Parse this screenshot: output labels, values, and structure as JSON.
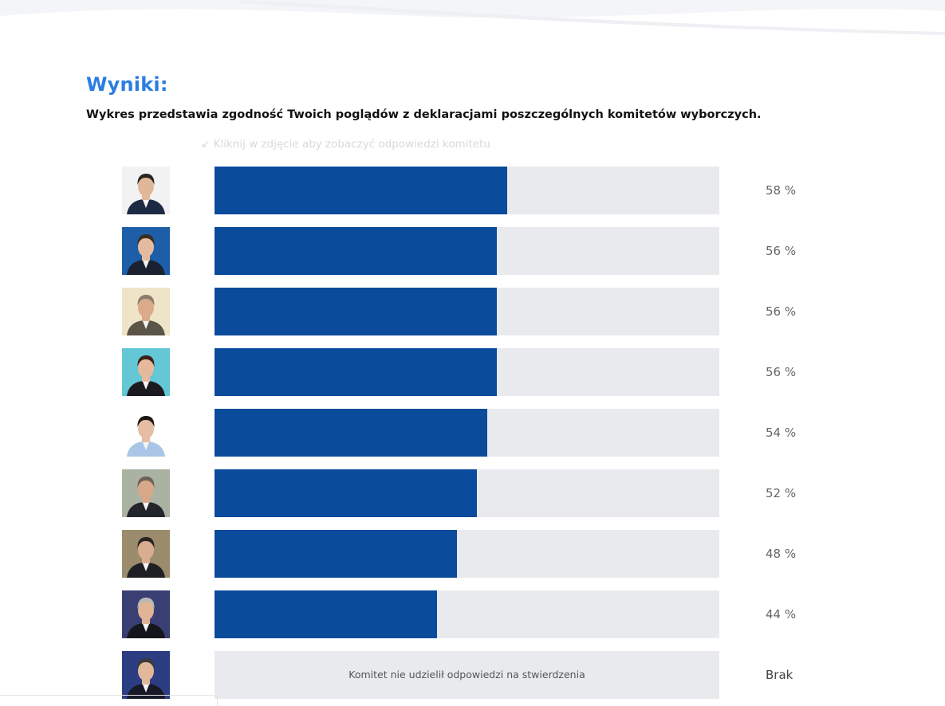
{
  "header": {
    "title": "Wyniki:",
    "subtitle": "Wykres przedstawia zgodność Twoich poglądów z deklaracjami poszczególnych komitetów wyborczych.",
    "hint": "↙ Kliknij w zdjęcie aby zobaczyć odpowiedzi komitetu"
  },
  "colors": {
    "accent": "#2b7de0",
    "bar_fill": "#0a4b9c",
    "bar_track": "#e8eaee"
  },
  "chart_data": {
    "type": "bar",
    "orientation": "horizontal",
    "ylim": [
      0,
      100
    ],
    "values": [
      58,
      56,
      56,
      56,
      54,
      52,
      48,
      44,
      null
    ],
    "labels": [
      "58 %",
      "56 %",
      "56 %",
      "56 %",
      "54 %",
      "52 %",
      "48 %",
      "44 %",
      "Brak"
    ]
  },
  "rows": [
    {
      "value": 58,
      "label": "58 %",
      "avatar_icon": "candidate-1-photo",
      "bg": "#f2f2f2",
      "suit": "#1d2a44",
      "hair": "#2b241f",
      "skin": "#e1b79a"
    },
    {
      "value": 56,
      "label": "56 %",
      "avatar_icon": "candidate-2-photo",
      "bg": "#1e5ea8",
      "suit": "#1a2232",
      "hair": "#3a2c22",
      "skin": "#e4bb9f"
    },
    {
      "value": 56,
      "label": "56 %",
      "avatar_icon": "candidate-3-photo",
      "bg": "#efe4c8",
      "suit": "#5b5548",
      "hair": "#8c7d6a",
      "skin": "#d9ab8a"
    },
    {
      "value": 56,
      "label": "56 %",
      "avatar_icon": "candidate-4-photo",
      "bg": "#63c7d6",
      "suit": "#1b1b1f",
      "hair": "#3b2216",
      "skin": "#e6b99c"
    },
    {
      "value": 54,
      "label": "54 %",
      "avatar_icon": "candidate-5-photo",
      "bg": "#ffffff",
      "suit": "#a9c6e6",
      "hair": "#1c1815",
      "skin": "#e5bda2"
    },
    {
      "value": 52,
      "label": "52 %",
      "avatar_icon": "candidate-6-photo",
      "bg": "#aab2a4",
      "suit": "#22252b",
      "hair": "#6d6256",
      "skin": "#d7a889"
    },
    {
      "value": 48,
      "label": "48 %",
      "avatar_icon": "candidate-7-photo",
      "bg": "#9a8c6c",
      "suit": "#1f2024",
      "hair": "#2a2420",
      "skin": "#d8ad90"
    },
    {
      "value": 44,
      "label": "44 %",
      "avatar_icon": "candidate-8-photo",
      "bg": "#3a3f73",
      "suit": "#15161c",
      "hair": "#b8b8b8",
      "skin": "#e0b497"
    },
    {
      "value": null,
      "label": "Brak",
      "note": "Komitet nie udzielił odpowiedzi na stwierdzenia",
      "avatar_icon": "candidate-9-photo",
      "bg": "#2d3d82",
      "suit": "#171a26",
      "hair": "#3a3a3a",
      "skin": "#e2b89b"
    }
  ]
}
